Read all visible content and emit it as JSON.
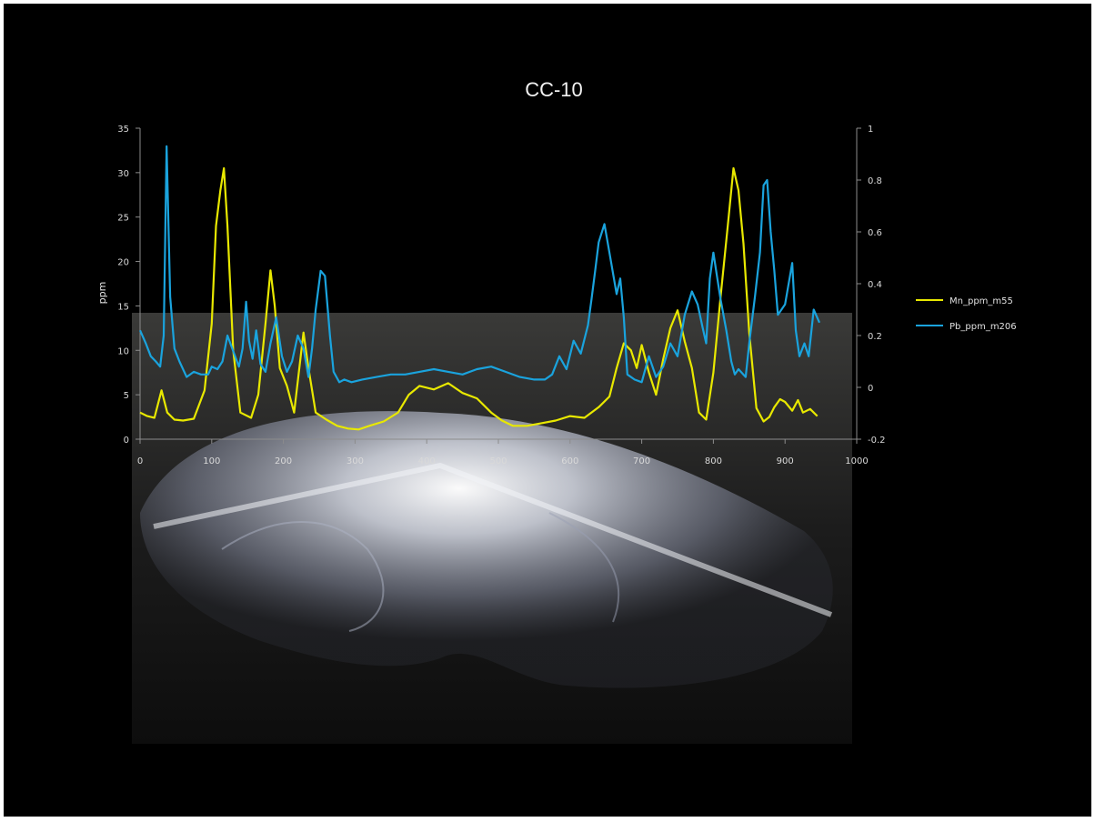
{
  "chart_data": {
    "type": "line",
    "title": "CC-10",
    "xlabel": "",
    "ylabel": "ppm",
    "y2label": "",
    "xlim": [
      0,
      1000
    ],
    "ylim": [
      0,
      35
    ],
    "y2lim": [
      -0.2,
      1
    ],
    "x_ticks": [
      "0",
      "100",
      "200",
      "300",
      "400",
      "500",
      "600",
      "700",
      "800",
      "900",
      "1000"
    ],
    "y_ticks": [
      "0",
      "5",
      "10",
      "15",
      "20",
      "25",
      "30",
      "35"
    ],
    "y2_ticks": [
      "-0.2",
      "0",
      "0.2",
      "0.4",
      "0.6",
      "0.8",
      "1"
    ],
    "grid": false,
    "legend_position": "right",
    "background": "black, with an otolith photograph behind the lower half of the chart",
    "series": [
      {
        "name": "Mn_ppm_m55",
        "axis": "left",
        "color": "#e8e800",
        "x": [
          0,
          10,
          20,
          30,
          38,
          48,
          60,
          75,
          90,
          100,
          106,
          112,
          117,
          122,
          130,
          140,
          155,
          165,
          175,
          182,
          188,
          195,
          205,
          215,
          228,
          235,
          245,
          260,
          275,
          290,
          305,
          320,
          340,
          360,
          375,
          390,
          410,
          430,
          450,
          470,
          490,
          505,
          520,
          540,
          560,
          580,
          600,
          620,
          640,
          655,
          665,
          675,
          685,
          693,
          700,
          710,
          720,
          730,
          740,
          750,
          760,
          770,
          780,
          790,
          800,
          810,
          820,
          828,
          835,
          842,
          850,
          860,
          870,
          878,
          885,
          893,
          900,
          910,
          918,
          925,
          935,
          945
        ],
        "values": [
          3,
          2.6,
          2.4,
          5.5,
          3,
          2.2,
          2.1,
          2.3,
          5.5,
          13,
          24,
          28,
          30.5,
          24,
          10,
          3,
          2.4,
          5,
          13,
          19,
          15,
          8,
          6,
          3,
          12,
          8,
          3,
          2.2,
          1.5,
          1.2,
          1.1,
          1.5,
          2,
          3,
          5,
          6,
          5.6,
          6.3,
          5.2,
          4.6,
          3,
          2.1,
          1.5,
          1.5,
          1.8,
          2.1,
          2.6,
          2.4,
          3.6,
          4.8,
          8,
          10.8,
          10,
          8,
          10.6,
          7.5,
          5,
          9,
          12.5,
          14.5,
          11,
          8,
          3,
          2.2,
          7.5,
          16,
          24,
          30.5,
          28,
          22,
          12,
          3.5,
          2,
          2.5,
          3.6,
          4.5,
          4.2,
          3.2,
          4.4,
          3,
          3.4,
          2.6
        ]
      },
      {
        "name": "Pb_ppm_m206",
        "axis": "right",
        "color": "#1aa3dd",
        "x": [
          0,
          8,
          15,
          22,
          28,
          33,
          37,
          42,
          48,
          55,
          65,
          75,
          85,
          95,
          100,
          108,
          115,
          122,
          130,
          138,
          143,
          148,
          152,
          157,
          162,
          168,
          175,
          182,
          190,
          198,
          205,
          212,
          220,
          228,
          235,
          240,
          245,
          252,
          258,
          265,
          270,
          278,
          285,
          295,
          310,
          330,
          350,
          370,
          390,
          410,
          430,
          450,
          470,
          490,
          510,
          530,
          550,
          565,
          575,
          585,
          595,
          605,
          615,
          625,
          630,
          635,
          640,
          648,
          655,
          665,
          670,
          675,
          680,
          690,
          700,
          710,
          720,
          730,
          740,
          750,
          760,
          770,
          778,
          785,
          790,
          795,
          800,
          805,
          810,
          818,
          825,
          830,
          835,
          845,
          850,
          858,
          865,
          870,
          875,
          880,
          885,
          890,
          900,
          910,
          915,
          920,
          927,
          933,
          940,
          948
        ],
        "values": [
          0.22,
          0.17,
          0.12,
          0.1,
          0.08,
          0.2,
          0.93,
          0.35,
          0.15,
          0.1,
          0.04,
          0.06,
          0.05,
          0.05,
          0.08,
          0.07,
          0.1,
          0.2,
          0.14,
          0.08,
          0.15,
          0.33,
          0.18,
          0.11,
          0.22,
          0.09,
          0.06,
          0.17,
          0.27,
          0.12,
          0.06,
          0.1,
          0.2,
          0.15,
          0.04,
          0.15,
          0.3,
          0.45,
          0.43,
          0.2,
          0.06,
          0.02,
          0.03,
          0.02,
          0.03,
          0.04,
          0.05,
          0.05,
          0.06,
          0.07,
          0.06,
          0.05,
          0.07,
          0.08,
          0.06,
          0.04,
          0.03,
          0.03,
          0.05,
          0.12,
          0.07,
          0.18,
          0.13,
          0.24,
          0.34,
          0.45,
          0.56,
          0.63,
          0.52,
          0.36,
          0.42,
          0.27,
          0.05,
          0.03,
          0.02,
          0.12,
          0.04,
          0.08,
          0.17,
          0.12,
          0.28,
          0.37,
          0.32,
          0.23,
          0.17,
          0.42,
          0.52,
          0.43,
          0.34,
          0.22,
          0.1,
          0.05,
          0.07,
          0.04,
          0.17,
          0.35,
          0.52,
          0.78,
          0.8,
          0.6,
          0.45,
          0.28,
          0.32,
          0.48,
          0.22,
          0.12,
          0.17,
          0.12,
          0.3,
          0.25
        ]
      }
    ]
  }
}
